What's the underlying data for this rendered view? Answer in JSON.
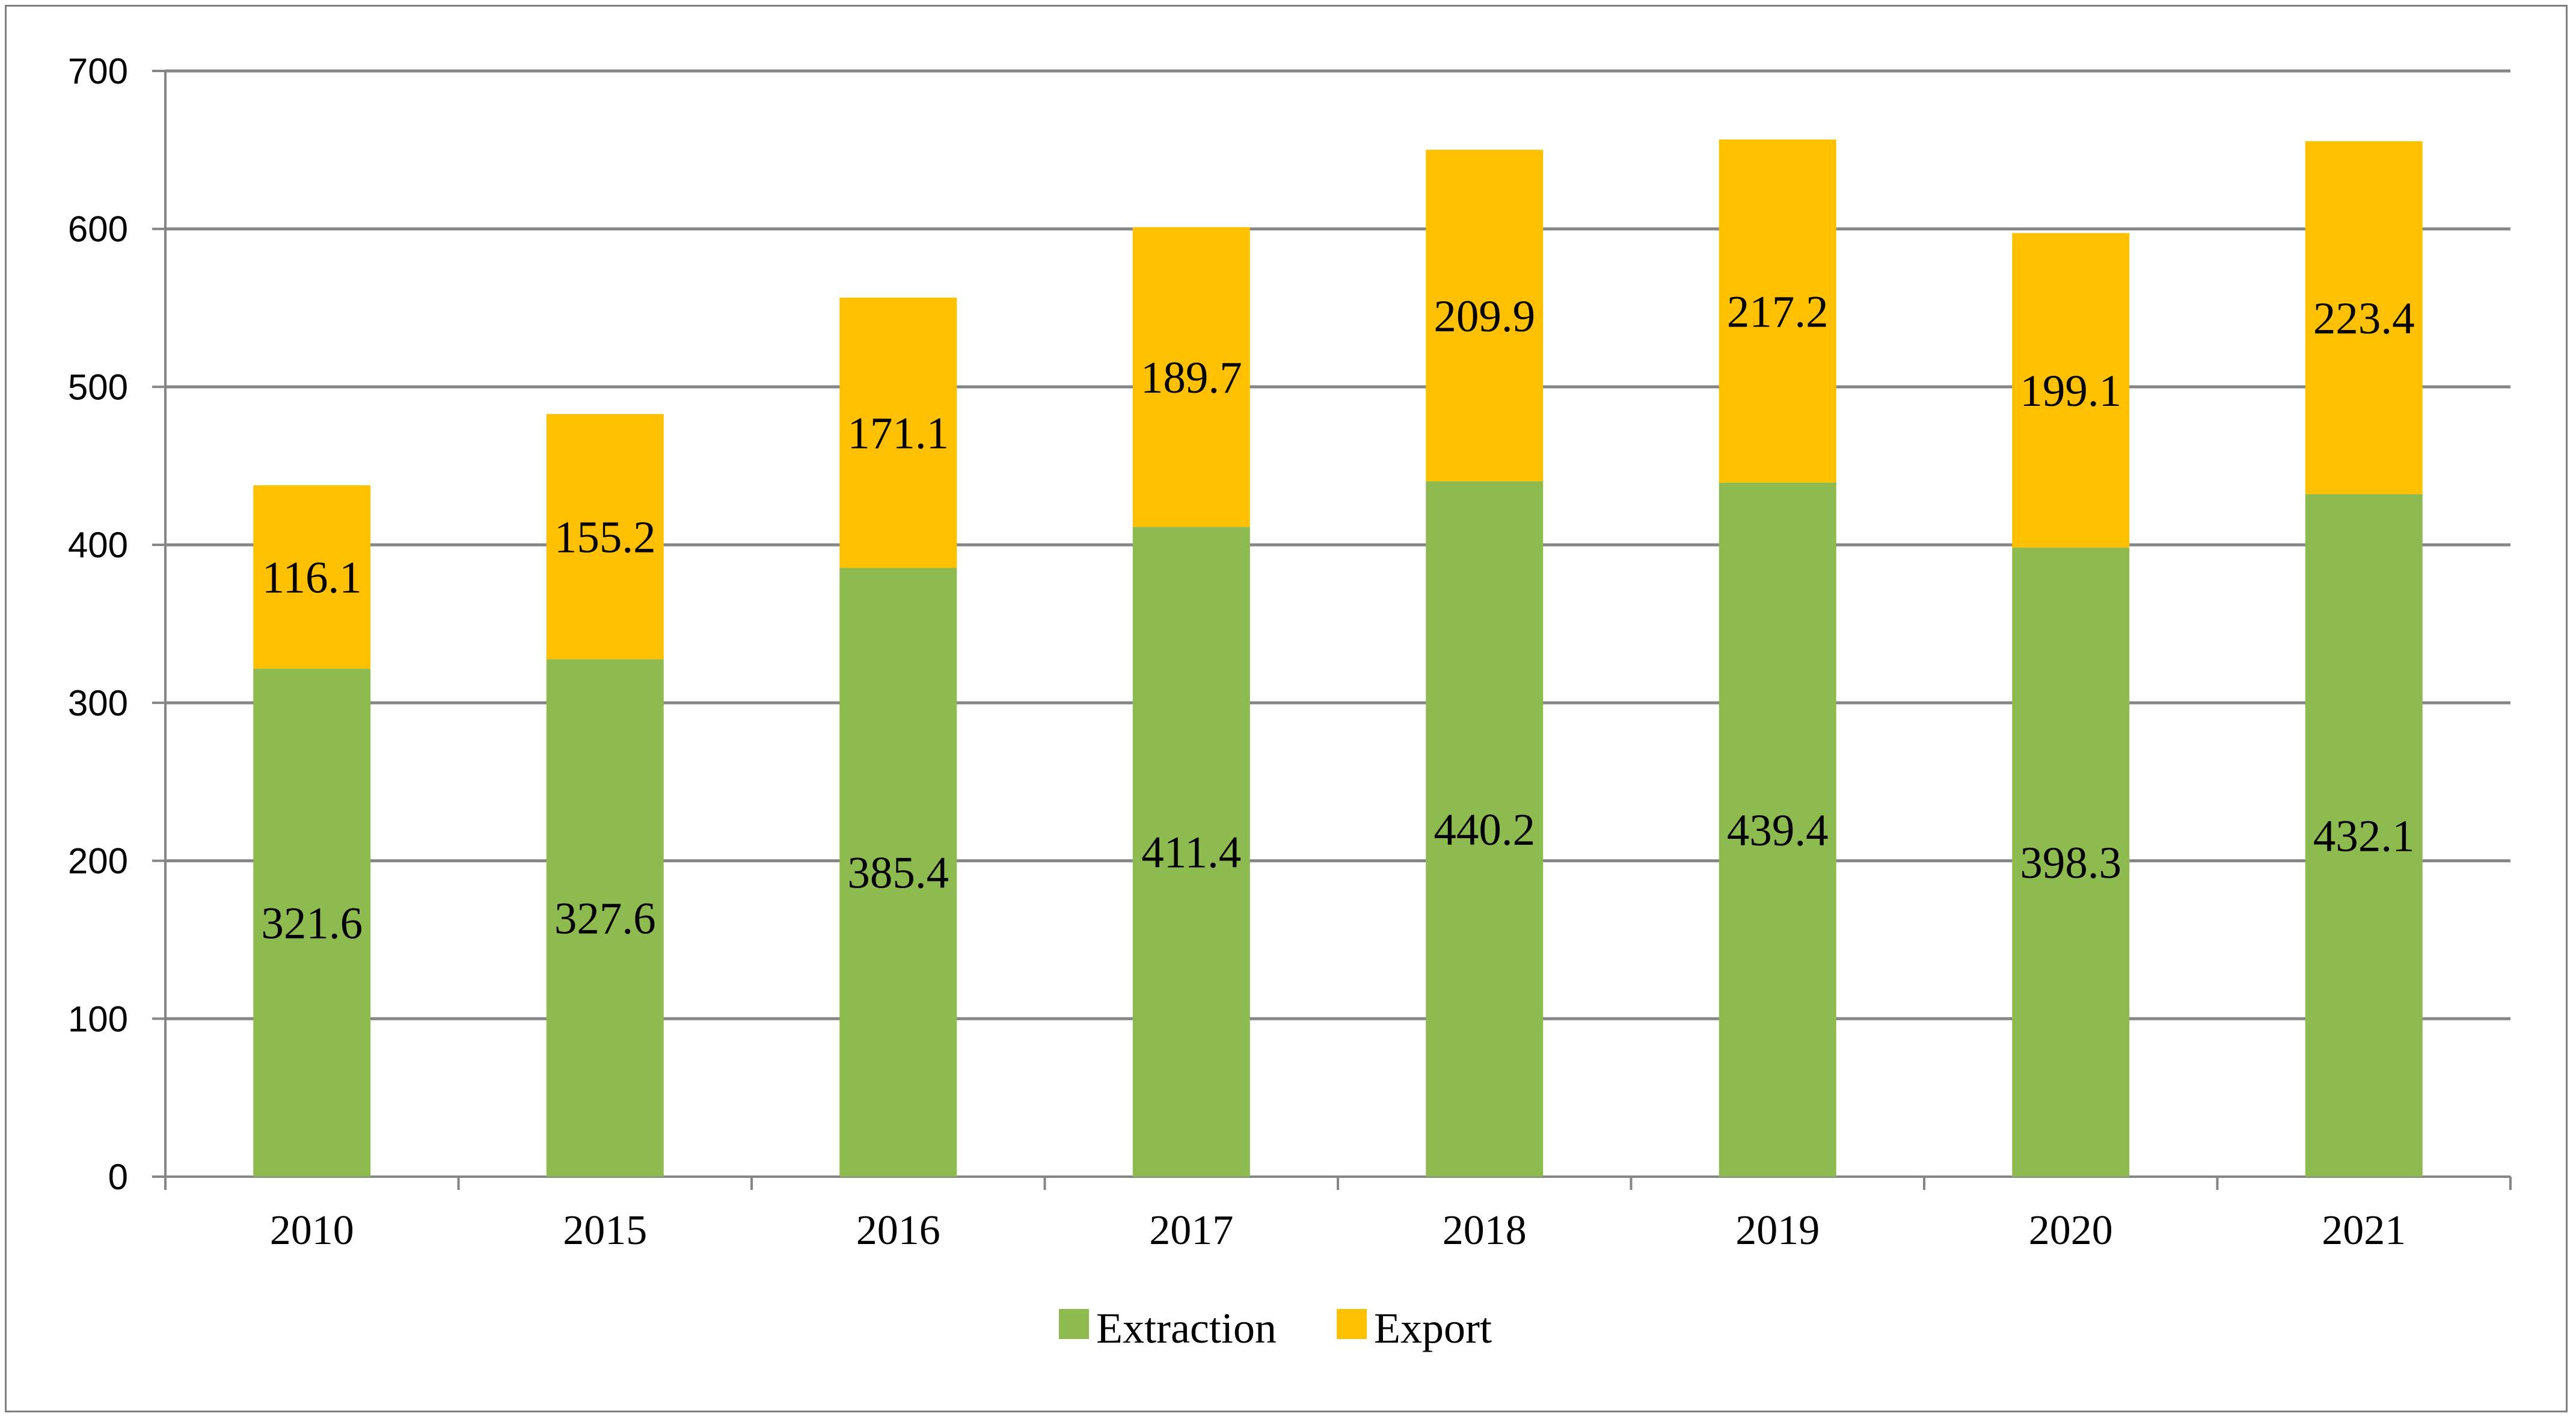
{
  "chart_data": {
    "type": "bar",
    "stacked": true,
    "title": "",
    "xlabel": "",
    "ylabel": "",
    "ylim": [
      0,
      700
    ],
    "yticks": [
      0,
      100,
      200,
      300,
      400,
      500,
      600,
      700
    ],
    "grid": true,
    "legend_position": "bottom-center",
    "categories": [
      "2010",
      "2015",
      "2016",
      "2017",
      "2018",
      "2019",
      "2020",
      "2021"
    ],
    "series": [
      {
        "name": "Extraction",
        "color": "#8DBB4F",
        "values": [
          321.6,
          327.6,
          385.4,
          411.4,
          440.2,
          439.4,
          398.3,
          432.1
        ],
        "labels": [
          "321.6",
          "327.6",
          "385.4",
          "411.4",
          "440.2",
          "439.4",
          "398.3",
          "432.1"
        ]
      },
      {
        "name": "Export",
        "color": "#FFC000",
        "values": [
          116.1,
          155.2,
          171.1,
          189.7,
          209.9,
          217.2,
          199.1,
          223.4
        ],
        "labels": [
          "116.1",
          "155.2",
          "171.1",
          "189.7",
          "209.9",
          "217.2",
          "199.1",
          "223.4"
        ]
      }
    ]
  }
}
